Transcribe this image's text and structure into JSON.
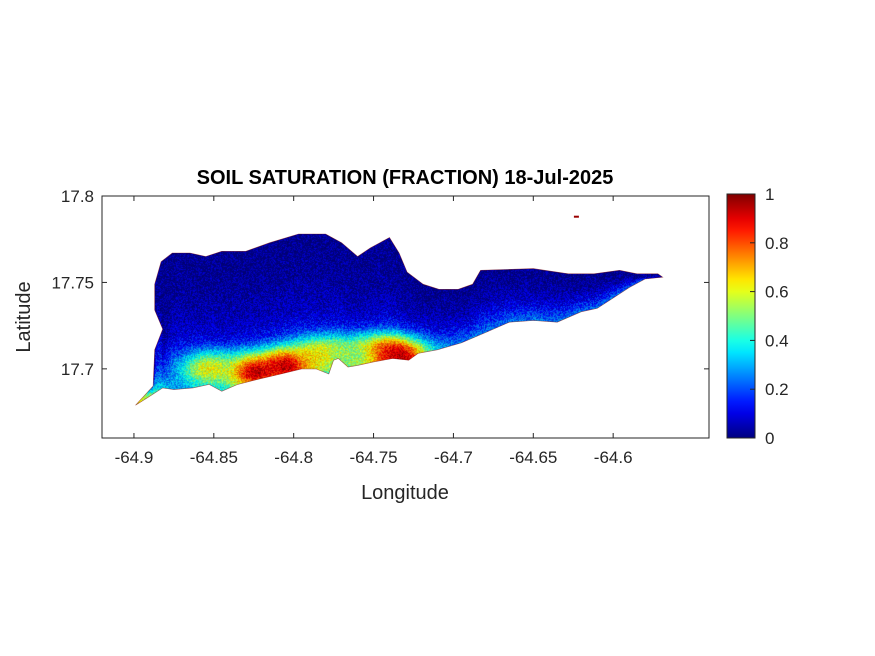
{
  "chart_data": {
    "type": "heatmap",
    "title": "SOIL SATURATION (FRACTION) 18-Jul-2025",
    "xlabel": "Longitude",
    "ylabel": "Latitude",
    "xlim": [
      -64.92,
      -64.54
    ],
    "ylim": [
      17.66,
      17.8
    ],
    "x_ticks": [
      -64.9,
      -64.85,
      -64.8,
      -64.75,
      -64.7,
      -64.65,
      -64.6
    ],
    "x_tick_labels": [
      "-64.9",
      "-64.85",
      "-64.8",
      "-64.75",
      "-64.7",
      "-64.65",
      "-64.6"
    ],
    "y_ticks": [
      17.7,
      17.75,
      17.8
    ],
    "y_tick_labels": [
      "17.7",
      "17.75",
      "17.8"
    ],
    "colorbar": {
      "colormap": "jet",
      "range": [
        0,
        1
      ],
      "ticks": [
        0,
        0.2,
        0.4,
        0.6,
        0.8,
        1
      ],
      "tick_labels": [
        "0",
        "0.2",
        "0.4",
        "0.6",
        "0.8",
        "1"
      ]
    },
    "region": {
      "north_outline": [
        [
          -64.899,
          17.679
        ],
        [
          -64.888,
          17.69
        ],
        [
          -64.887,
          17.711
        ],
        [
          -64.882,
          17.723
        ],
        [
          -64.887,
          17.734
        ],
        [
          -64.887,
          17.749
        ],
        [
          -64.883,
          17.762
        ],
        [
          -64.876,
          17.767
        ],
        [
          -64.865,
          17.767
        ],
        [
          -64.855,
          17.765
        ],
        [
          -64.845,
          17.768
        ],
        [
          -64.83,
          17.768
        ],
        [
          -64.815,
          17.773
        ],
        [
          -64.797,
          17.778
        ],
        [
          -64.78,
          17.778
        ],
        [
          -64.77,
          17.773
        ],
        [
          -64.76,
          17.765
        ],
        [
          -64.752,
          17.77
        ],
        [
          -64.74,
          17.776
        ],
        [
          -64.734,
          17.767
        ],
        [
          -64.729,
          17.756
        ],
        [
          -64.719,
          17.749
        ],
        [
          -64.709,
          17.746
        ],
        [
          -64.697,
          17.746
        ],
        [
          -64.688,
          17.749
        ],
        [
          -64.683,
          17.757
        ],
        [
          -64.65,
          17.758
        ],
        [
          -64.628,
          17.755
        ],
        [
          -64.612,
          17.755
        ],
        [
          -64.596,
          17.757
        ],
        [
          -64.585,
          17.755
        ],
        [
          -64.572,
          17.755
        ],
        [
          -64.569,
          17.753
        ]
      ],
      "south_outline": [
        [
          -64.569,
          17.753
        ],
        [
          -64.58,
          17.752
        ],
        [
          -64.59,
          17.747
        ],
        [
          -64.6,
          17.741
        ],
        [
          -64.61,
          17.735
        ],
        [
          -64.62,
          17.733
        ],
        [
          -64.635,
          17.727
        ],
        [
          -64.65,
          17.728
        ],
        [
          -64.665,
          17.727
        ],
        [
          -64.68,
          17.721
        ],
        [
          -64.695,
          17.715
        ],
        [
          -64.71,
          17.711
        ],
        [
          -64.722,
          17.709
        ],
        [
          -64.728,
          17.705
        ],
        [
          -64.738,
          17.706
        ],
        [
          -64.75,
          17.704
        ],
        [
          -64.76,
          17.702
        ],
        [
          -64.766,
          17.701
        ],
        [
          -64.772,
          17.706
        ],
        [
          -64.775,
          17.705
        ],
        [
          -64.778,
          17.697
        ],
        [
          -64.786,
          17.7
        ],
        [
          -64.795,
          17.7
        ],
        [
          -64.808,
          17.697
        ],
        [
          -64.822,
          17.694
        ],
        [
          -64.835,
          17.691
        ],
        [
          -64.845,
          17.687
        ],
        [
          -64.853,
          17.691
        ],
        [
          -64.863,
          17.689
        ],
        [
          -64.875,
          17.688
        ],
        [
          -64.882,
          17.689
        ],
        [
          -64.892,
          17.683
        ],
        [
          -64.899,
          17.679
        ]
      ],
      "saturation_field": {
        "north_coast_value": 0.02,
        "south_coast_value": 0.25,
        "wet_spots": [
          {
            "lon": -64.825,
            "lat": 17.698,
            "value": 0.95
          },
          {
            "lon": -64.803,
            "lat": 17.702,
            "value": 0.97
          },
          {
            "lon": -64.782,
            "lat": 17.708,
            "value": 0.7
          },
          {
            "lon": -64.745,
            "lat": 17.708,
            "value": 0.88
          },
          {
            "lon": -64.735,
            "lat": 17.707,
            "value": 0.95
          },
          {
            "lon": -64.853,
            "lat": 17.7,
            "value": 0.62
          },
          {
            "lon": -64.765,
            "lat": 17.707,
            "value": 0.52
          },
          {
            "lon": -64.897,
            "lat": 17.681,
            "value": 0.6
          }
        ]
      },
      "islet": {
        "lon": -64.623,
        "lat": 17.788,
        "value": 0.05
      }
    }
  }
}
